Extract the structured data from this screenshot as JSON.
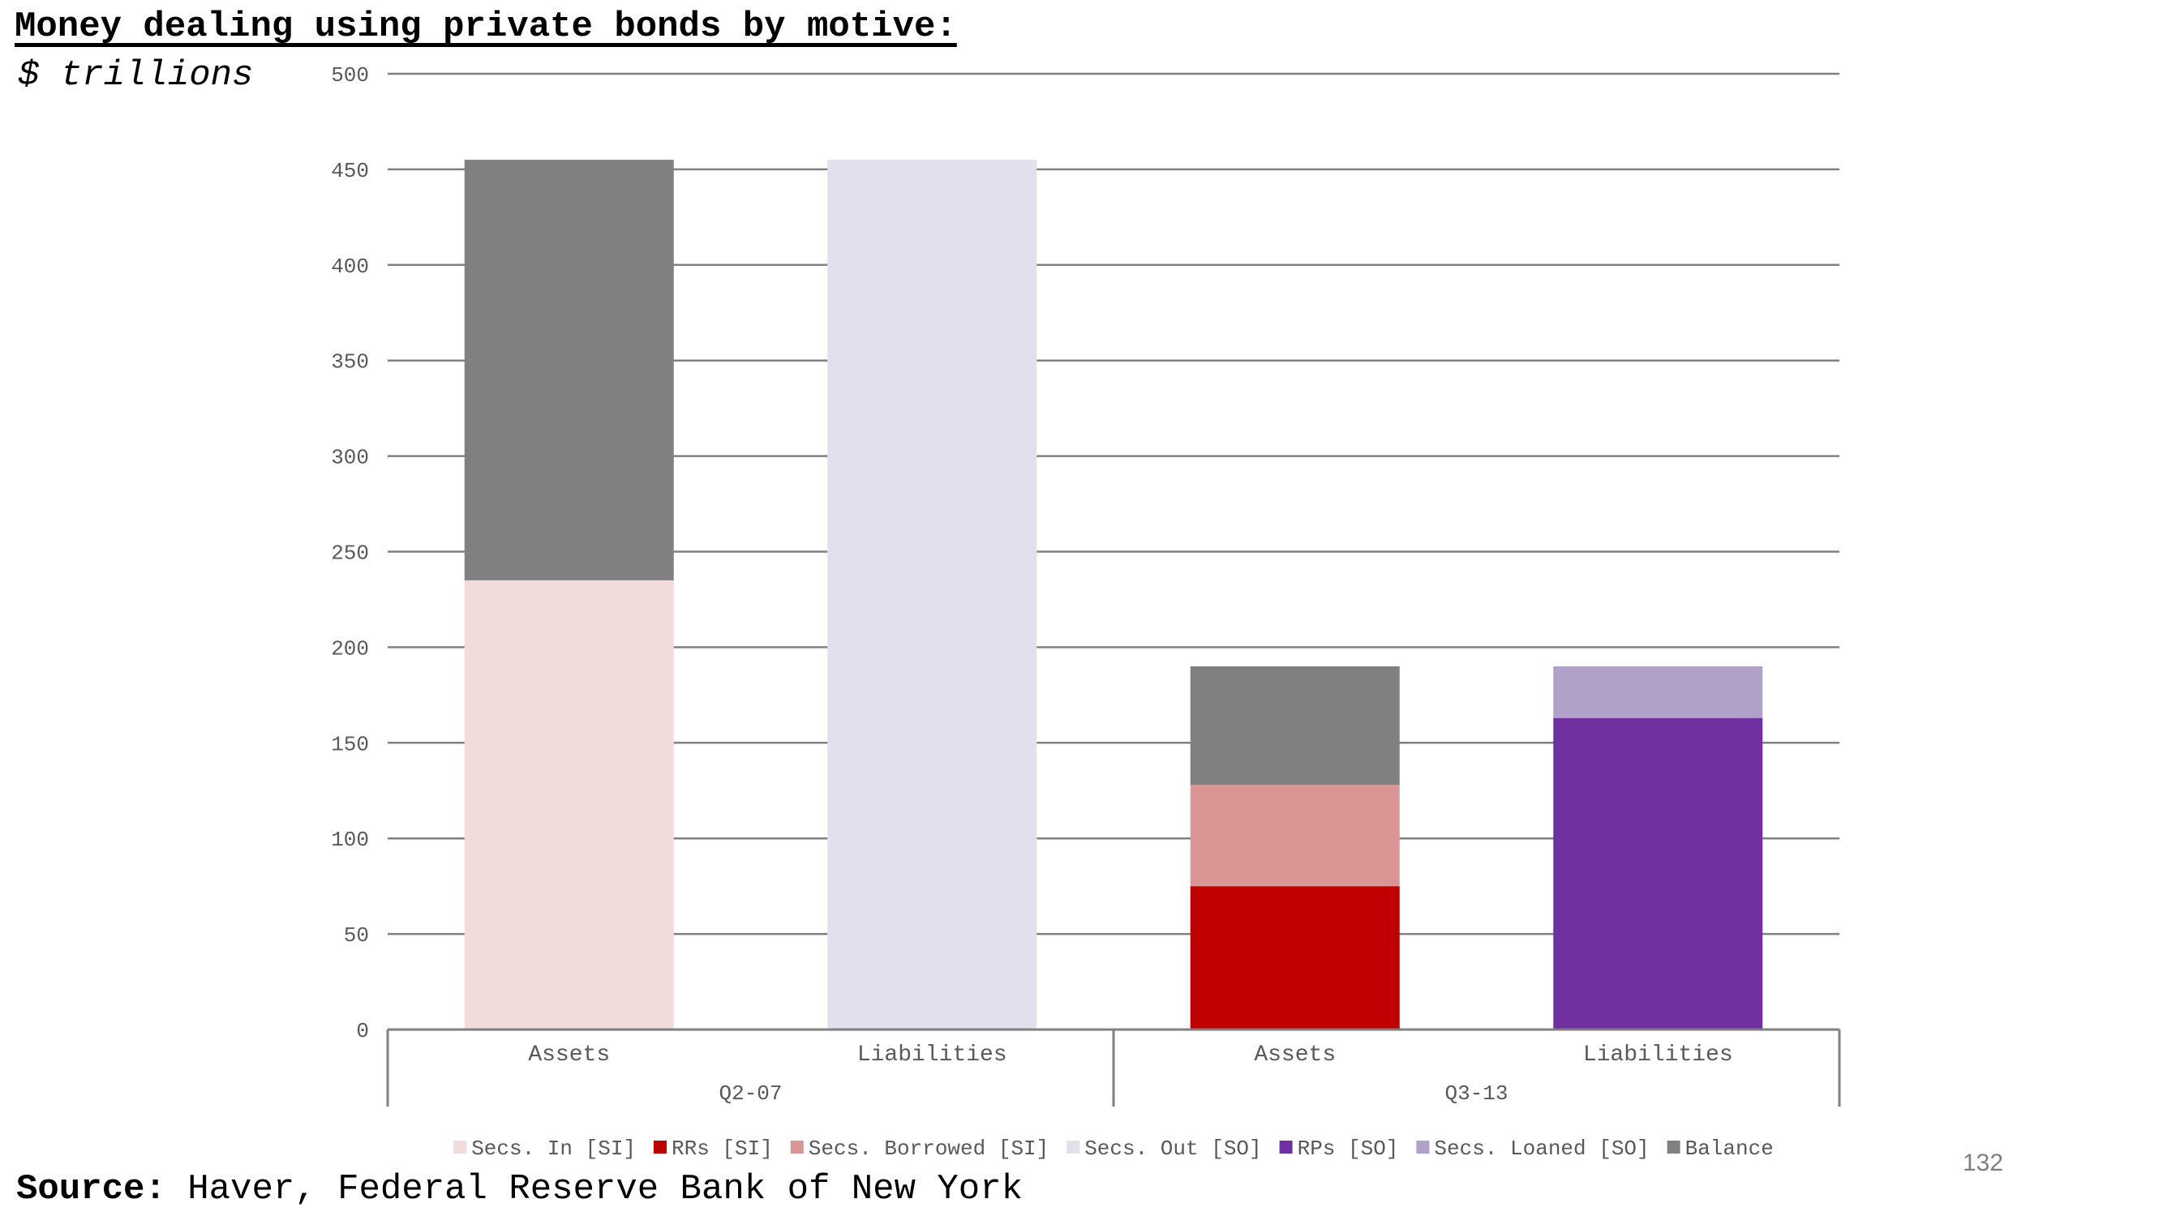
{
  "header": {
    "title": "Money dealing using private bonds by motive:",
    "subtitle": "$ trillions"
  },
  "footer": {
    "source_label": "Source:",
    "source_text": " Haver, Federal Reserve Bank of New York",
    "page_number": "132"
  },
  "chart_data": {
    "type": "bar",
    "stacked": true,
    "title": "Money dealing using private bonds by motive:",
    "subtitle": "$ trillions",
    "xlabel": "",
    "ylabel": "",
    "ylim": [
      0,
      500
    ],
    "yticks": [
      0,
      50,
      100,
      150,
      200,
      250,
      300,
      350,
      400,
      450,
      500
    ],
    "grid": true,
    "legend_position": "bottom",
    "groups": [
      {
        "label": "Q2-07",
        "categories": [
          "Assets",
          "Liabilities"
        ]
      },
      {
        "label": "Q3-13",
        "categories": [
          "Assets",
          "Liabilities"
        ]
      }
    ],
    "categories": [
      "Assets",
      "Liabilities",
      "Assets",
      "Liabilities"
    ],
    "series": [
      {
        "name": "Secs. In [SI]",
        "color": "#f2dcdb",
        "values": [
          235,
          0,
          0,
          0
        ]
      },
      {
        "name": "RRs [SI]",
        "color": "#c00000",
        "values": [
          0,
          0,
          75,
          0
        ]
      },
      {
        "name": "Secs. Borrowed [SI]",
        "color": "#da9694",
        "values": [
          0,
          0,
          53,
          0
        ]
      },
      {
        "name": "Secs. Out [SO]",
        "color": "#e4dfec",
        "values": [
          0,
          455,
          0,
          0
        ]
      },
      {
        "name": "RPs [SO]",
        "color": "#7030a0",
        "values": [
          0,
          0,
          0,
          163
        ]
      },
      {
        "name": "Secs. Loaned [SO]",
        "color": "#b1a0c7",
        "values": [
          0,
          0,
          0,
          27
        ]
      },
      {
        "name": "Balance",
        "color": "#808080",
        "values": [
          220,
          0,
          62,
          0
        ]
      }
    ]
  }
}
